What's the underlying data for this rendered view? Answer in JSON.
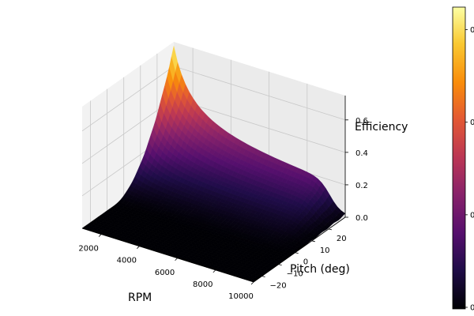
{
  "chart_data": {
    "type": "surface3d",
    "title": "",
    "xlabel": "RPM",
    "ylabel": "Pitch (deg)",
    "zlabel": "Efficiency",
    "x_ticks": [
      2000,
      4000,
      6000,
      8000,
      10000
    ],
    "y_ticks": [
      -20,
      -10,
      0,
      10,
      20
    ],
    "z_ticks": [
      "0.0",
      "0.2",
      "0.4",
      "0.6"
    ],
    "xlim": [
      1000,
      10000
    ],
    "ylim": [
      -25,
      30
    ],
    "zlim": [
      0,
      0.75
    ],
    "colormap": "inferno",
    "colorbar_ticks": [
      "0",
      "0",
      "0",
      "0"
    ],
    "grid": true,
    "surface_description_points": [
      {
        "rpm": 1000,
        "pitch": 30,
        "efficiency": 0.72
      },
      {
        "rpm": 2000,
        "pitch": 30,
        "efficiency": 0.52
      },
      {
        "rpm": 4000,
        "pitch": 30,
        "efficiency": 0.3
      },
      {
        "rpm": 6000,
        "pitch": 30,
        "efficiency": 0.2
      },
      {
        "rpm": 10000,
        "pitch": 30,
        "efficiency": 0.11
      },
      {
        "rpm": 10000,
        "pitch": -10,
        "efficiency": 0.0
      },
      {
        "rpm": 1000,
        "pitch": -25,
        "efficiency": 0.0
      }
    ]
  }
}
